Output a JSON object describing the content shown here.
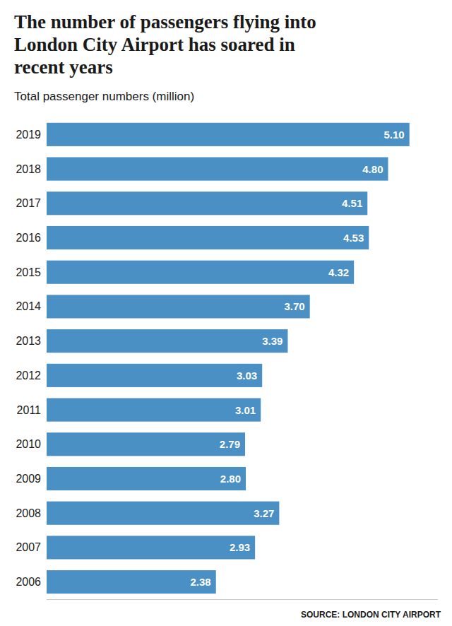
{
  "chart_data": {
    "type": "bar",
    "orientation": "horizontal",
    "title": "The number of passengers flying into\nLondon City Airport has soared in\nrecent years",
    "subtitle": "Total passenger numbers (million)",
    "source": "SOURCE: LONDON CITY AIRPORT",
    "categories": [
      "2019",
      "2018",
      "2017",
      "2016",
      "2015",
      "2014",
      "2013",
      "2012",
      "2011",
      "2010",
      "2009",
      "2008",
      "2007",
      "2006"
    ],
    "values": [
      5.1,
      4.8,
      4.51,
      4.53,
      4.32,
      3.7,
      3.39,
      3.03,
      3.01,
      2.79,
      2.8,
      3.27,
      2.93,
      2.38
    ],
    "value_labels": [
      "5.10",
      "4.80",
      "4.51",
      "4.53",
      "4.32",
      "3.70",
      "3.39",
      "3.03",
      "3.01",
      "2.79",
      "2.80",
      "3.27",
      "2.93",
      "2.38"
    ],
    "color": "#4A90C4",
    "xlim": [
      0,
      5.5
    ],
    "data_labels": true,
    "tick_labels": "y",
    "grid": false
  }
}
